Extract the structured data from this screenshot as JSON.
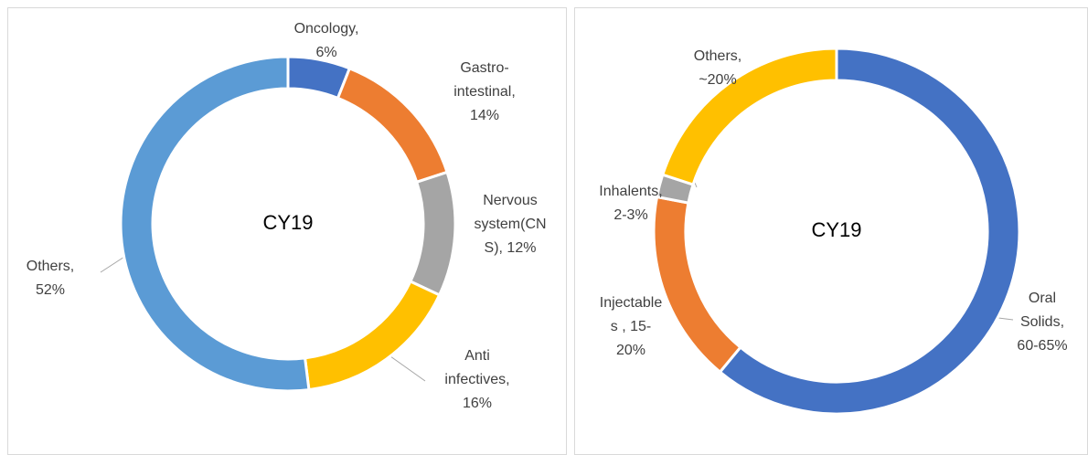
{
  "chart_data": [
    {
      "type": "donut",
      "center_text": "CY19",
      "categories": [
        [
          "Oncology,",
          "6%"
        ],
        [
          "Gastro-",
          "intestinal,",
          "14%"
        ],
        [
          "Nervous",
          "system(CN",
          "S), 12%"
        ],
        [
          "Anti",
          "infectives,",
          "16%"
        ],
        [
          "Others,",
          "52%"
        ]
      ],
      "values": [
        6,
        14,
        12,
        16,
        52
      ],
      "colors": [
        "#4472c4",
        "#ed7d31",
        "#a5a5a5",
        "#ffc000",
        "#5b9bd5"
      ]
    },
    {
      "type": "donut",
      "center_text": "CY19",
      "categories": [
        [
          "Oral",
          "Solids,",
          "60-65%"
        ],
        [
          "Injectable",
          "s , 15-",
          "20%"
        ],
        [
          "Inhalents,",
          "2-3%"
        ],
        [
          "Others,",
          "~20%"
        ]
      ],
      "values": [
        61,
        17,
        2,
        20
      ],
      "colors": [
        "#4472c4",
        "#ed7d31",
        "#a5a5a5",
        "#ffc000"
      ]
    }
  ]
}
